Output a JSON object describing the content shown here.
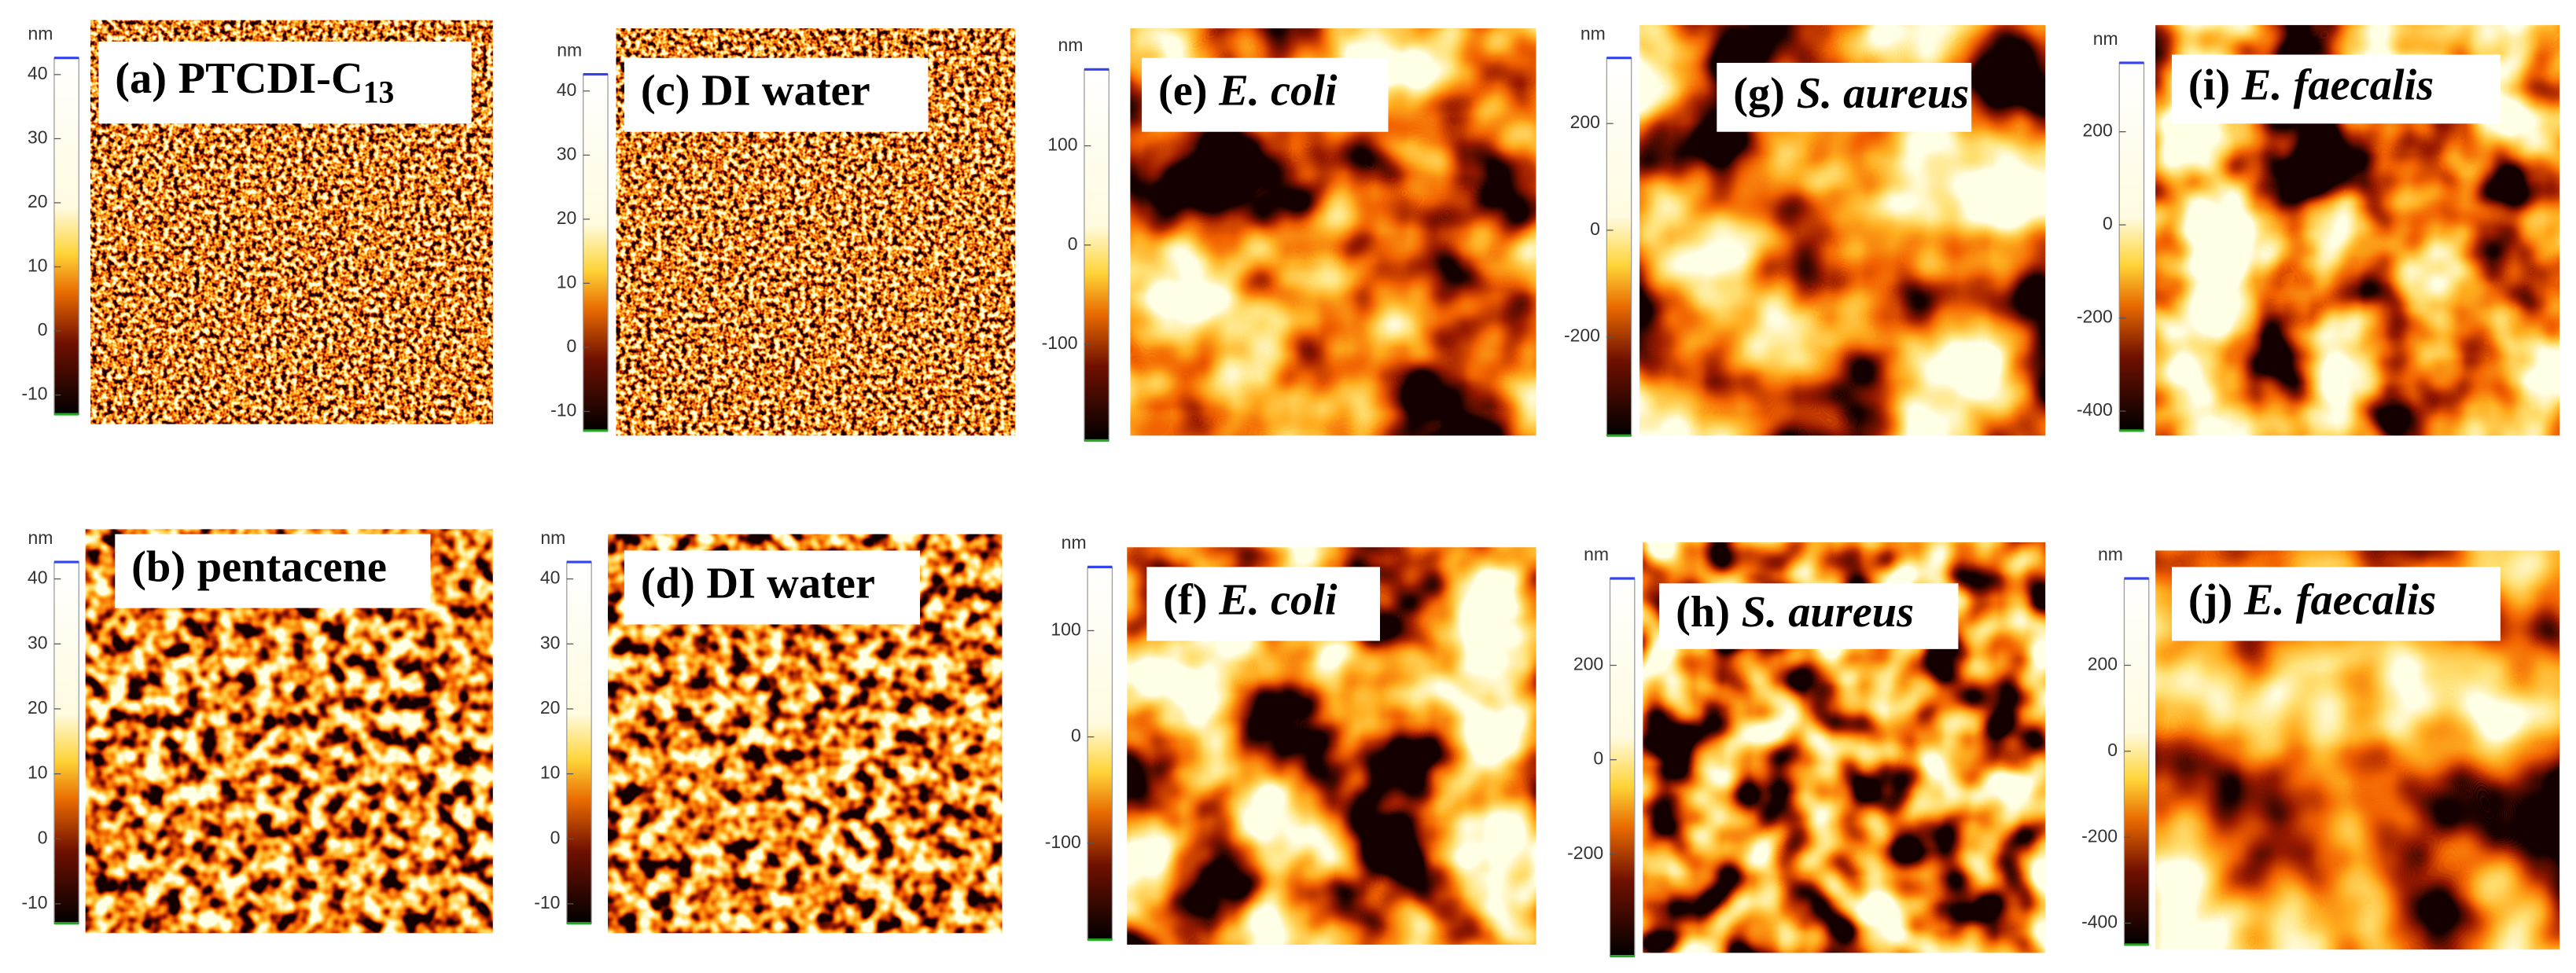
{
  "panels": [
    {
      "label": {
        "letter": "(a)",
        "name": "PTCDI-C",
        "sub": "13"
      },
      "italic": false,
      "unit": "nm",
      "ylim": [
        -13,
        42.6
      ],
      "yticks": [
        40,
        30,
        20,
        10,
        0,
        -10
      ]
    },
    {
      "label": {
        "letter": "(b)",
        "name": "pentacene"
      },
      "italic": false,
      "unit": "nm",
      "ylim": [
        -13,
        42.6
      ],
      "yticks": [
        40,
        30,
        20,
        10,
        0,
        -10
      ]
    },
    {
      "label": {
        "letter": "(c)",
        "name": "DI water"
      },
      "italic": false,
      "unit": "nm",
      "ylim": [
        -13,
        42.6
      ],
      "yticks": [
        40,
        30,
        20,
        10,
        0,
        -10
      ]
    },
    {
      "label": {
        "letter": "(d)",
        "name": "DI water"
      },
      "italic": false,
      "unit": "nm",
      "ylim": [
        -13,
        42.6
      ],
      "yticks": [
        40,
        30,
        20,
        10,
        0,
        -10
      ]
    },
    {
      "label": {
        "letter": "(e)",
        "name": "E. coli"
      },
      "italic": true,
      "unit": "nm",
      "ylim": [
        -197,
        177
      ],
      "yticks": [
        100,
        0,
        -100
      ]
    },
    {
      "label": {
        "letter": "(f)",
        "name": "E. coli"
      },
      "italic": true,
      "unit": "nm",
      "ylim": [
        -191,
        160
      ],
      "yticks": [
        100,
        0,
        -100
      ]
    },
    {
      "label": {
        "letter": "(g)",
        "name": "S. aureus"
      },
      "italic": true,
      "unit": "nm",
      "ylim": [
        -385,
        323
      ],
      "yticks": [
        200,
        0,
        -200
      ]
    },
    {
      "label": {
        "letter": "(h)",
        "name": "S. aureus"
      },
      "italic": true,
      "unit": "nm",
      "ylim": [
        -416,
        384
      ],
      "yticks": [
        200,
        0,
        -200
      ]
    },
    {
      "label": {
        "letter": "(i)",
        "name": "E. faecalis"
      },
      "italic": true,
      "unit": "nm",
      "ylim": [
        -442,
        348
      ],
      "yticks": [
        200,
        0,
        -200,
        -400
      ]
    },
    {
      "label": {
        "letter": "(j)",
        "name": "E. faecalis"
      },
      "italic": true,
      "unit": "nm",
      "ylim": [
        -450,
        402
      ],
      "yticks": [
        200,
        0,
        -200,
        -400
      ]
    }
  ]
}
